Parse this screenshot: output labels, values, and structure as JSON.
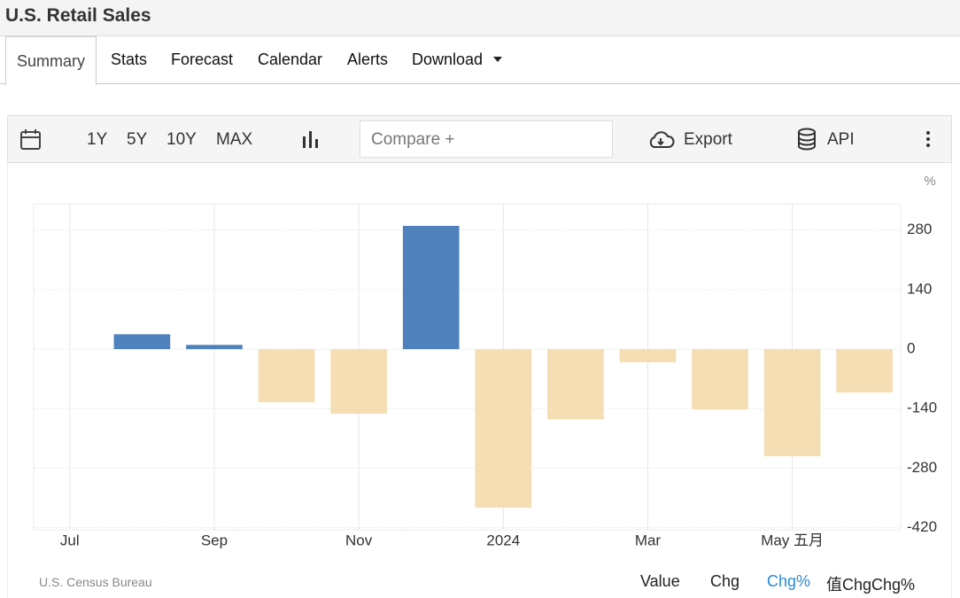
{
  "header": {
    "title": "U.S. Retail Sales"
  },
  "tabs": [
    "Summary",
    "Stats",
    "Forecast",
    "Calendar",
    "Alerts",
    "Download"
  ],
  "toolbar": {
    "ranges": [
      "1Y",
      "5Y",
      "10Y",
      "MAX"
    ],
    "compare": "Compare +",
    "export": "Export",
    "api": "API"
  },
  "chart_data": {
    "type": "bar",
    "unit": "%",
    "categories": [
      "Jul",
      null,
      "Sep",
      null,
      "Nov",
      null,
      "2024",
      null,
      "Mar",
      null,
      "May 五月",
      null
    ],
    "values": [
      null,
      35,
      10,
      -125,
      -152,
      290,
      -373,
      -165,
      -31,
      -142,
      -252,
      -102
    ],
    "color": "#4f81bd",
    "negative_color": "#f5deb3",
    "ylim": [
      -425,
      342
    ],
    "yticks": [
      280,
      140,
      0,
      -140,
      -280,
      -420
    ],
    "grid": true
  },
  "source": "U.S. Census Bureau",
  "views": [
    "Value",
    "Chg",
    "Chg%",
    "值ChgChg%"
  ]
}
